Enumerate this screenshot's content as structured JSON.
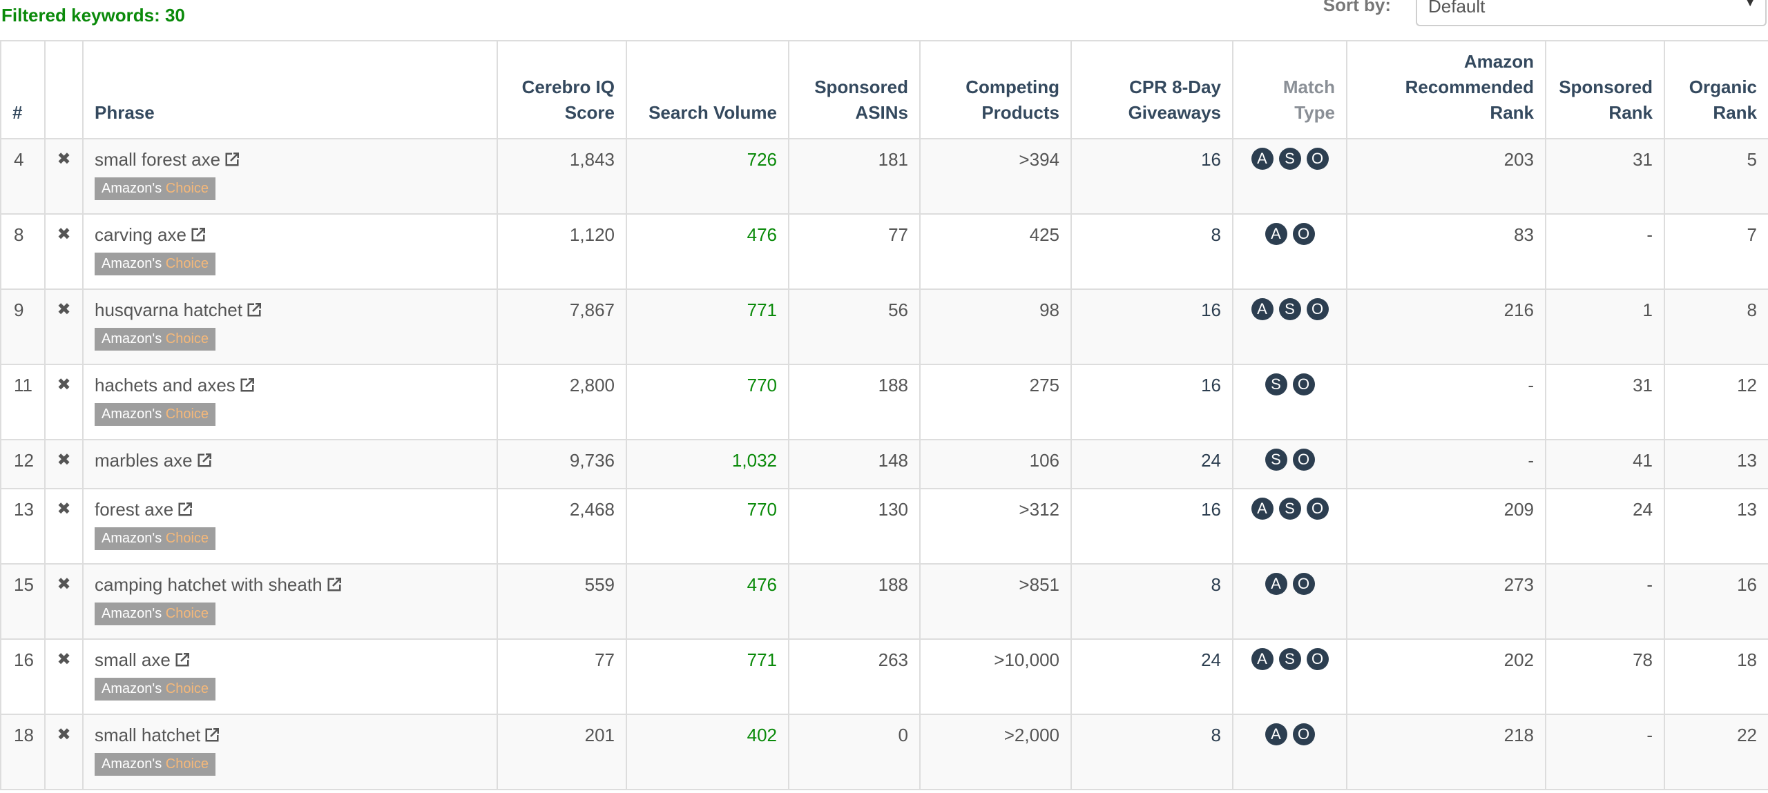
{
  "header": {
    "filtered_label": "Filtered keywords: 30",
    "sort_label": "Sort by:",
    "sort_value": "Default"
  },
  "columns": [
    "#",
    "",
    "Phrase",
    "Cerebro IQ Score",
    "Search Volume",
    "Sponsored ASINs",
    "Competing Products",
    "CPR 8-Day Giveaways",
    "Match Type",
    "Amazon Recommended Rank",
    "Sponsored Rank",
    "Organic Rank"
  ],
  "column_lines": {
    "cerebro": [
      "Cerebro IQ",
      "Score"
    ],
    "search": [
      "Search Volume"
    ],
    "sponsored_asins": [
      "Sponsored",
      "ASINs"
    ],
    "competing": [
      "Competing",
      "Products"
    ],
    "cpr": [
      "CPR 8-Day",
      "Giveaways"
    ],
    "match": [
      "Match",
      "Type"
    ],
    "amazon_rank": [
      "Amazon",
      "Recommended",
      "Rank"
    ],
    "sponsored_rank": [
      "Sponsored",
      "Rank"
    ],
    "organic_rank": [
      "Organic",
      "Rank"
    ]
  },
  "badge": {
    "prefix": "Amazon's",
    "suffix": "Choice"
  },
  "colors": {
    "green_value": "#0a8a0a",
    "header_text": "#34495e",
    "match_circle": "#2c3e50",
    "badge_bg": "#9e9e9e",
    "badge_choice": "#f5b879"
  },
  "rows": [
    {
      "idx": "4",
      "phrase": "small forest axe",
      "badge": true,
      "cerebro": "1,843",
      "search": "726",
      "sp_asins": "181",
      "competing": ">394",
      "cpr": "16",
      "match": [
        "A",
        "S",
        "O"
      ],
      "amazon_rank": "203",
      "sp_rank": "31",
      "org_rank": "5"
    },
    {
      "idx": "8",
      "phrase": "carving axe",
      "badge": true,
      "cerebro": "1,120",
      "search": "476",
      "sp_asins": "77",
      "competing": "425",
      "cpr": "8",
      "match": [
        "A",
        "O"
      ],
      "amazon_rank": "83",
      "sp_rank": "-",
      "org_rank": "7"
    },
    {
      "idx": "9",
      "phrase": "husqvarna hatchet",
      "badge": true,
      "cerebro": "7,867",
      "search": "771",
      "sp_asins": "56",
      "competing": "98",
      "cpr": "16",
      "match": [
        "A",
        "S",
        "O"
      ],
      "amazon_rank": "216",
      "sp_rank": "1",
      "org_rank": "8"
    },
    {
      "idx": "11",
      "phrase": "hachets and axes",
      "badge": true,
      "cerebro": "2,800",
      "search": "770",
      "sp_asins": "188",
      "competing": "275",
      "cpr": "16",
      "match": [
        "S",
        "O"
      ],
      "amazon_rank": "-",
      "sp_rank": "31",
      "org_rank": "12"
    },
    {
      "idx": "12",
      "phrase": "marbles axe",
      "badge": false,
      "cerebro": "9,736",
      "search": "1,032",
      "sp_asins": "148",
      "competing": "106",
      "cpr": "24",
      "match": [
        "S",
        "O"
      ],
      "amazon_rank": "-",
      "sp_rank": "41",
      "org_rank": "13"
    },
    {
      "idx": "13",
      "phrase": "forest axe",
      "badge": true,
      "cerebro": "2,468",
      "search": "770",
      "sp_asins": "130",
      "competing": ">312",
      "cpr": "16",
      "match": [
        "A",
        "S",
        "O"
      ],
      "amazon_rank": "209",
      "sp_rank": "24",
      "org_rank": "13"
    },
    {
      "idx": "15",
      "phrase": "camping hatchet with sheath",
      "badge": true,
      "cerebro": "559",
      "search": "476",
      "sp_asins": "188",
      "competing": ">851",
      "cpr": "8",
      "match": [
        "A",
        "O"
      ],
      "amazon_rank": "273",
      "sp_rank": "-",
      "org_rank": "16"
    },
    {
      "idx": "16",
      "phrase": "small axe",
      "badge": true,
      "cerebro": "77",
      "search": "771",
      "sp_asins": "263",
      "competing": ">10,000",
      "cpr": "24",
      "match": [
        "A",
        "S",
        "O"
      ],
      "amazon_rank": "202",
      "sp_rank": "78",
      "org_rank": "18"
    },
    {
      "idx": "18",
      "phrase": "small hatchet",
      "badge": true,
      "cerebro": "201",
      "search": "402",
      "sp_asins": "0",
      "competing": ">2,000",
      "cpr": "8",
      "match": [
        "A",
        "O"
      ],
      "amazon_rank": "218",
      "sp_rank": "-",
      "org_rank": "22"
    }
  ]
}
